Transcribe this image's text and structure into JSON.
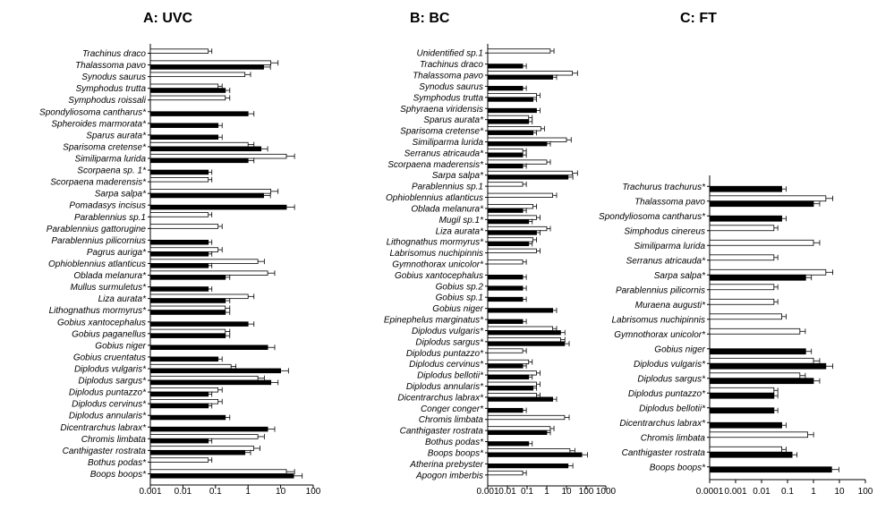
{
  "chart_data": [
    {
      "type": "bar",
      "title": "A: UVC",
      "x_scale": "log",
      "xlim": [
        0.001,
        100
      ],
      "xticks": [
        "0.001",
        "0.01",
        "0.1",
        "1",
        "10",
        "100"
      ],
      "legend": "none",
      "series_colors": {
        "white": "#ffffff",
        "black": "#000000"
      },
      "species": [
        {
          "label": "Trachinus draco",
          "white": 0.06,
          "black": null
        },
        {
          "label": "Thalassoma pavo",
          "white": 5,
          "black": 3
        },
        {
          "label": "Synodus saurus",
          "white": 0.8,
          "black": null
        },
        {
          "label": "Symphodus trutta",
          "white": 0.12,
          "black": 0.2
        },
        {
          "label": "Symphodus roissali",
          "white": 0.2,
          "black": null
        },
        {
          "label": "Spondyliosoma cantharus*",
          "white": null,
          "black": 1
        },
        {
          "label": "Spheroides marmorata*",
          "white": null,
          "black": 0.12
        },
        {
          "label": "Sparus aurata*",
          "white": null,
          "black": 0.12
        },
        {
          "label": "Sparisoma cretense*",
          "white": 1,
          "black": 2.5
        },
        {
          "label": "Similiparma lurida",
          "white": 15,
          "black": 1
        },
        {
          "label": "Scorpaena sp. 1*",
          "white": null,
          "black": 0.06
        },
        {
          "label": "Scorpaena maderensis*",
          "white": 0.06,
          "black": null
        },
        {
          "label": "Sarpa salpa*",
          "white": 5,
          "black": 3
        },
        {
          "label": "Pomadasys incisus",
          "white": null,
          "black": 15
        },
        {
          "label": "Parablennius sp.1",
          "white": 0.06,
          "black": null
        },
        {
          "label": "Parablennius gattorugine",
          "white": 0.12,
          "black": null
        },
        {
          "label": "Parablennius pilicornius",
          "white": null,
          "black": 0.06
        },
        {
          "label": "Pagrus auriga*",
          "white": 0.12,
          "black": 0.06
        },
        {
          "label": "Ophioblennius atlanticus",
          "white": 2,
          "black": 0.06
        },
        {
          "label": "Oblada melanura*",
          "white": 4,
          "black": 0.2
        },
        {
          "label": "Mullus surmuletus*",
          "white": null,
          "black": 0.06
        },
        {
          "label": "Liza aurata*",
          "white": 1,
          "black": 0.2
        },
        {
          "label": "Lithognathus mormyrus*",
          "white": 0.2,
          "black": 0.2
        },
        {
          "label": "Gobius xantocephalus",
          "white": null,
          "black": 1
        },
        {
          "label": "Gobius paganellus",
          "white": 0.2,
          "black": 0.2
        },
        {
          "label": "Gobius niger",
          "white": null,
          "black": 4
        },
        {
          "label": "Gobius cruentatus",
          "white": null,
          "black": 0.12
        },
        {
          "label": "Diplodus vulgaris*",
          "white": 0.3,
          "black": 10
        },
        {
          "label": "Diplodus sargus*",
          "white": 2,
          "black": 5
        },
        {
          "label": "Diplodus puntazzo*",
          "white": 0.12,
          "black": 0.06
        },
        {
          "label": "Diplodus cervinus*",
          "white": 0.12,
          "black": 0.06
        },
        {
          "label": "Diplodus annularis*",
          "white": null,
          "black": 0.2
        },
        {
          "label": "Dicentrarchus labrax*",
          "white": null,
          "black": 4
        },
        {
          "label": "Chromis limbata",
          "white": 2,
          "black": 0.06
        },
        {
          "label": "Canthigaster rostrata",
          "white": 1.5,
          "black": 0.8
        },
        {
          "label": "Bothus podas*",
          "white": 0.06,
          "black": null
        },
        {
          "label": "Boops boops*",
          "white": 15,
          "black": 25
        }
      ]
    },
    {
      "type": "bar",
      "title": "B: BC",
      "x_scale": "log",
      "xlim": [
        0.001,
        1000
      ],
      "xticks": [
        "0.001",
        "0.01",
        "0.1",
        "1",
        "10",
        "100",
        "1000"
      ],
      "legend": "none",
      "series_colors": {
        "white": "#ffffff",
        "black": "#000000"
      },
      "species": [
        {
          "label": "Unidentified sp.1",
          "white": 1.5,
          "black": null
        },
        {
          "label": "Trachinus draco",
          "white": null,
          "black": 0.06
        },
        {
          "label": "Thalassoma pavo",
          "white": 20,
          "black": 2
        },
        {
          "label": "Synodus saurus",
          "white": null,
          "black": 0.06
        },
        {
          "label": "Symphodus trutta",
          "white": 0.3,
          "black": 0.2
        },
        {
          "label": "Sphyraena viridensis",
          "white": null,
          "black": 0.3
        },
        {
          "label": "Sparus aurata*",
          "white": 0.12,
          "black": 0.12
        },
        {
          "label": "Sparisoma cretense*",
          "white": 0.5,
          "black": 0.2
        },
        {
          "label": "Similiparma lurida",
          "white": 10,
          "black": 1
        },
        {
          "label": "Serranus atricauda*",
          "white": 0.06,
          "black": 0.06
        },
        {
          "label": "Scorpaena maderensis*",
          "white": 1,
          "black": 0.06
        },
        {
          "label": "Sarpa salpa*",
          "white": 20,
          "black": 12
        },
        {
          "label": "Parablennius sp.1",
          "white": 0.06,
          "black": null
        },
        {
          "label": "Ophioblennius atlanticus",
          "white": 2,
          "black": null
        },
        {
          "label": "Oblada melanura*",
          "white": 0.2,
          "black": 0.06
        },
        {
          "label": "Mugil sp.1*",
          "white": 0.3,
          "black": 0.12
        },
        {
          "label": "Liza aurata*",
          "white": 1,
          "black": 0.3
        },
        {
          "label": "Lithognathus mormyrus*",
          "white": 0.2,
          "black": 0.12
        },
        {
          "label": "Labrisomus nuchipinnis",
          "white": 0.3,
          "black": null
        },
        {
          "label": "Gymnothorax unicolor*",
          "white": 0.06,
          "black": null
        },
        {
          "label": "Gobius xantocephalus",
          "white": null,
          "black": 0.06
        },
        {
          "label": "Gobius sp.2",
          "white": null,
          "black": 0.06
        },
        {
          "label": "Gobius sp.1",
          "white": null,
          "black": 0.06
        },
        {
          "label": "Gobius niger",
          "white": null,
          "black": 2
        },
        {
          "label": "Epinephelus marginatus*",
          "white": null,
          "black": 0.06
        },
        {
          "label": "Diplodus vulgaris*",
          "white": 2,
          "black": 5
        },
        {
          "label": "Diplodus sargus*",
          "white": 5,
          "black": 8
        },
        {
          "label": "Diplodus puntazzo*",
          "white": 0.06,
          "black": null
        },
        {
          "label": "Diplodus cervinus*",
          "white": 0.12,
          "black": 0.06
        },
        {
          "label": "Diplodus bellotii*",
          "white": 0.3,
          "black": 0.12
        },
        {
          "label": "Diplodus annularis*",
          "white": 0.3,
          "black": 0.2
        },
        {
          "label": "Dicentrarchus labrax*",
          "white": 0.3,
          "black": 2
        },
        {
          "label": "Conger conger*",
          "white": null,
          "black": 0.06
        },
        {
          "label": "Chromis limbata",
          "white": 8,
          "black": null
        },
        {
          "label": "Canthigaster rostrata",
          "white": 1.5,
          "black": 1
        },
        {
          "label": "Bothus podas*",
          "white": null,
          "black": 0.12
        },
        {
          "label": "Boops boops*",
          "white": 15,
          "black": 60
        },
        {
          "label": "Atherina prebyster",
          "white": null,
          "black": 12
        },
        {
          "label": "Apogon imberbis",
          "white": 0.06,
          "black": null
        }
      ]
    },
    {
      "type": "bar",
      "title": "C: FT",
      "x_scale": "log",
      "xlim": [
        0.0001,
        100
      ],
      "xticks": [
        "0.0001",
        "0.001",
        "0.01",
        "0.1",
        "1",
        "10",
        "100"
      ],
      "legend": "none",
      "series_colors": {
        "white": "#ffffff",
        "black": "#000000"
      },
      "species": [
        {
          "label": "Trachurus trachurus*",
          "white": null,
          "black": 0.06
        },
        {
          "label": "Thalassoma pavo",
          "white": 3,
          "black": 1
        },
        {
          "label": "Spondyliosoma cantharus*",
          "white": null,
          "black": 0.06
        },
        {
          "label": "Simphodus cinereus",
          "white": 0.03,
          "black": null
        },
        {
          "label": "Similiparma lurida",
          "white": 1,
          "black": null
        },
        {
          "label": "Serranus atricauda*",
          "white": 0.03,
          "black": null
        },
        {
          "label": "Sarpa salpa*",
          "white": 3,
          "black": 0.5
        },
        {
          "label": "Parablennius pilicornis",
          "white": 0.03,
          "black": null
        },
        {
          "label": "Muraena augusti*",
          "white": 0.03,
          "black": null
        },
        {
          "label": "Labrisomus nuchipinnis",
          "white": 0.06,
          "black": null
        },
        {
          "label": "Gymnothorax unicolor*",
          "white": 0.3,
          "black": null
        },
        {
          "label": "Gobius niger",
          "white": null,
          "black": 0.5
        },
        {
          "label": "Diplodus vulgaris*",
          "white": 1,
          "black": 3
        },
        {
          "label": "Diplodus sargus*",
          "white": 0.3,
          "black": 1
        },
        {
          "label": "Diplodus puntazzo*",
          "white": 0.03,
          "black": 0.03
        },
        {
          "label": "Diplodus bellotii*",
          "white": null,
          "black": 0.03
        },
        {
          "label": "Dicentrarchus labrax*",
          "white": null,
          "black": 0.06
        },
        {
          "label": "Chromis limbata",
          "white": 0.6,
          "black": null
        },
        {
          "label": "Canthigaster rostrata",
          "white": 0.06,
          "black": 0.15
        },
        {
          "label": "Boops boops*",
          "white": null,
          "black": 5
        }
      ]
    }
  ]
}
